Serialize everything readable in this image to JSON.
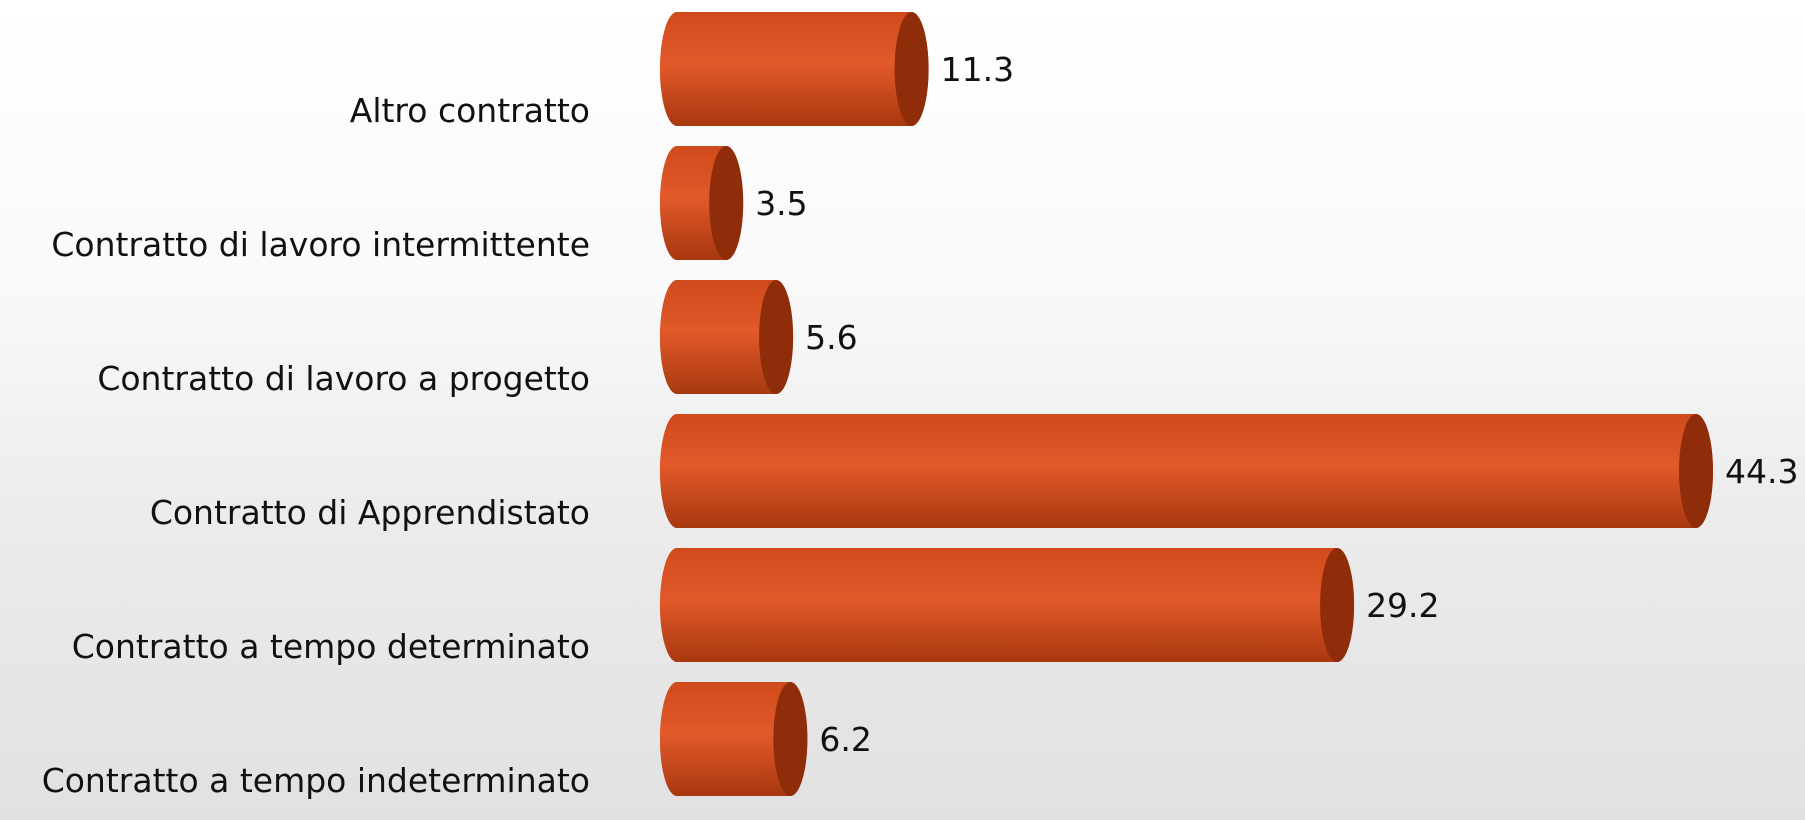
{
  "chart_data": {
    "type": "bar",
    "orientation": "horizontal",
    "style": "3d-cylinder",
    "categories": [
      "Altro contratto",
      "Contratto di lavoro intermittente",
      "Contratto di lavoro a progetto",
      "Contratto di Apprendistato",
      "Contratto a tempo determinato",
      "Contratto a tempo indeterminato"
    ],
    "values": [
      11.3,
      3.5,
      5.6,
      44.3,
      29.2,
      6.2
    ],
    "value_labels": [
      "11.3",
      "3.5",
      "5.6",
      "44.3",
      "29.2",
      "6.2"
    ],
    "xlim": [
      0,
      44.3
    ],
    "grid": false,
    "legend": "none",
    "colors": {
      "bar_light": "#e2592a",
      "bar_mid": "#cf4a1c",
      "bar_dark": "#a8380f",
      "bar_cap": "#8f2d0a"
    }
  }
}
